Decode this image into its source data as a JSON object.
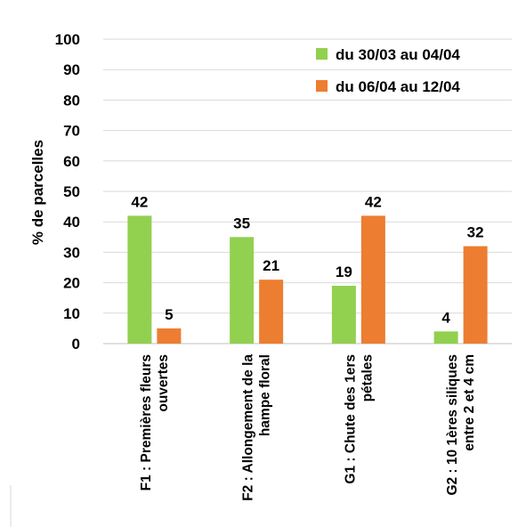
{
  "chart_data": {
    "type": "bar",
    "title": "",
    "xlabel": "",
    "ylabel": "% de parcelles",
    "ylim": [
      0,
      100
    ],
    "yticks": [
      0,
      10,
      20,
      30,
      40,
      50,
      60,
      70,
      80,
      90,
      100
    ],
    "grid": true,
    "legend_position": "top-right",
    "categories": [
      [
        "F1 : Premières fleurs",
        "ouvertes"
      ],
      [
        "F2 : Allongement de la",
        "hampe floral"
      ],
      [
        "G1 : Chute des 1ers",
        "pétales"
      ],
      [
        "G2 : 10 1ères siliques",
        "entre 2 et 4 cm"
      ]
    ],
    "series": [
      {
        "name": "du 30/03 au 04/04",
        "color": "#92d050",
        "values": [
          42,
          35,
          19,
          4
        ]
      },
      {
        "name": "du 06/04 au 12/04",
        "color": "#ed7d31",
        "values": [
          5,
          21,
          42,
          32
        ]
      }
    ]
  }
}
